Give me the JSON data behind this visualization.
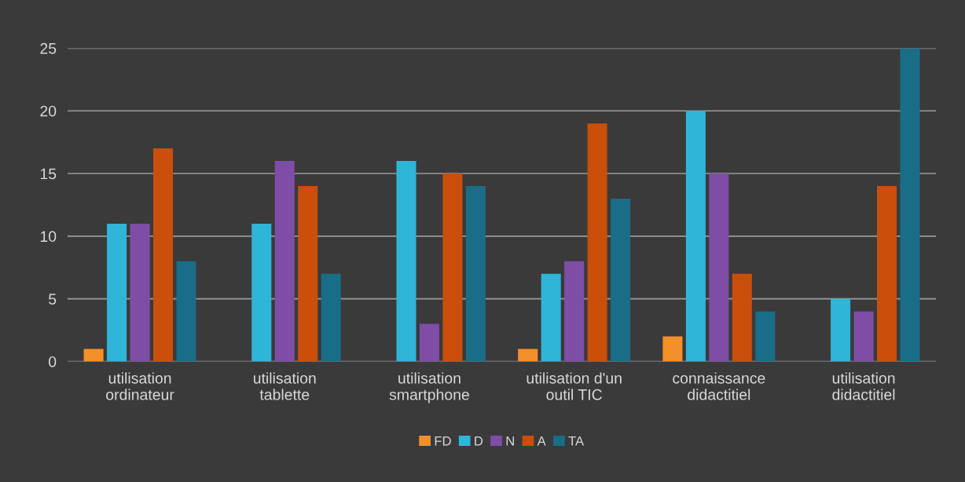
{
  "chart_data": {
    "type": "bar",
    "categories": [
      "utilisation\nordinateur",
      "utilisation\ntablette",
      "utilisation\nsmartphone",
      "utilisation d'un\noutil TIC",
      "connaissance\ndidactitiel",
      "utilisation\ndidactitiel"
    ],
    "series": [
      {
        "name": "FD",
        "color": "#f4902a",
        "values": [
          1,
          0,
          0,
          1,
          2,
          0
        ]
      },
      {
        "name": "D",
        "color": "#2fb5d8",
        "values": [
          11,
          11,
          16,
          7,
          20,
          5
        ]
      },
      {
        "name": "N",
        "color": "#7e4ea6",
        "values": [
          11,
          16,
          3,
          8,
          15,
          4
        ]
      },
      {
        "name": "A",
        "color": "#c94f0a",
        "values": [
          17,
          14,
          15,
          19,
          7,
          14
        ]
      },
      {
        "name": "TA",
        "color": "#1a6d86",
        "values": [
          8,
          7,
          14,
          13,
          4,
          25
        ]
      }
    ],
    "ylim": [
      0,
      25
    ],
    "yticks": [
      0,
      5,
      10,
      15,
      20,
      25
    ],
    "grid": "y",
    "legend": "bottom"
  }
}
